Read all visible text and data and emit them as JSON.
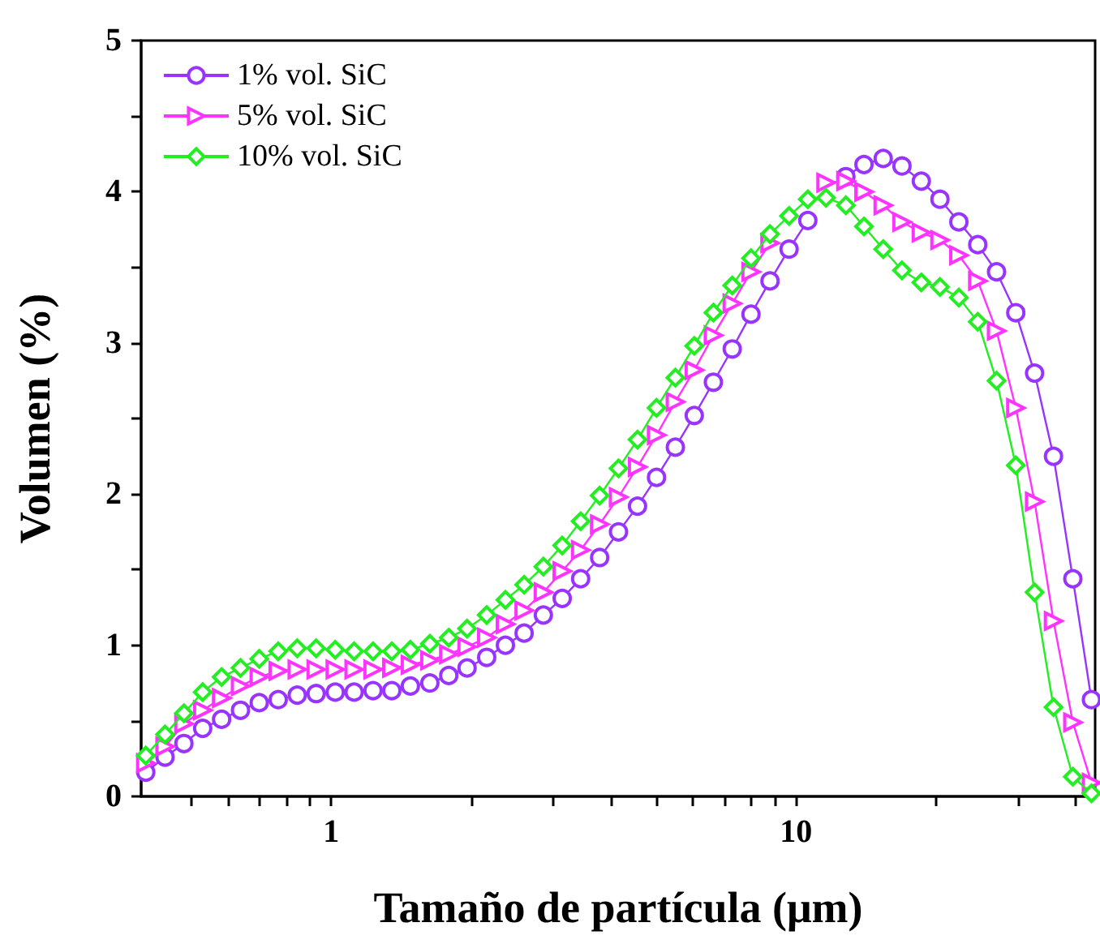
{
  "chart_data": {
    "type": "line",
    "xlabel": "Tamaño de partícula (μm)",
    "ylabel": "Volumen (%)",
    "x": [
      0.399,
      0.439,
      0.482,
      0.529,
      0.581,
      0.638,
      0.7,
      0.769,
      0.845,
      0.928,
      1.02,
      1.12,
      1.23,
      1.35,
      1.48,
      1.63,
      1.79,
      1.96,
      2.16,
      2.37,
      2.6,
      2.86,
      3.14,
      3.44,
      3.78,
      4.15,
      4.56,
      5.01,
      5.5,
      6.04,
      6.64,
      7.29,
      8.0,
      8.79,
      9.66,
      10.6,
      11.6,
      12.8,
      14.0,
      15.4,
      16.9,
      18.6,
      20.4,
      22.4,
      24.6,
      27.0,
      29.7,
      32.6,
      35.8,
      39.4,
      43.2
    ],
    "series": [
      {
        "name": "1% vol. SiC",
        "color": "#9933ff",
        "marker": "circle",
        "values": [
          0.16,
          0.26,
          0.35,
          0.45,
          0.51,
          0.57,
          0.62,
          0.64,
          0.67,
          0.68,
          0.69,
          0.69,
          0.7,
          0.7,
          0.73,
          0.75,
          0.8,
          0.85,
          0.92,
          1.0,
          1.08,
          1.2,
          1.31,
          1.44,
          1.58,
          1.75,
          1.92,
          2.11,
          2.31,
          2.52,
          2.74,
          2.96,
          3.19,
          3.41,
          3.62,
          3.81,
          null,
          4.1,
          4.18,
          4.22,
          4.17,
          4.07,
          3.95,
          3.8,
          3.65,
          3.47,
          3.2,
          2.8,
          2.25,
          1.44,
          0.64
        ]
      },
      {
        "name": "5% vol. SiC",
        "color": "#ff33ff",
        "marker": "triangle",
        "values": [
          0.22,
          0.33,
          0.48,
          0.57,
          0.65,
          0.73,
          0.79,
          0.83,
          0.84,
          0.84,
          0.84,
          0.84,
          0.84,
          0.85,
          0.87,
          0.9,
          0.94,
          0.99,
          1.05,
          1.14,
          1.23,
          1.35,
          1.49,
          1.63,
          1.8,
          1.98,
          2.18,
          2.39,
          2.61,
          2.82,
          3.05,
          3.26,
          3.47,
          3.66,
          null,
          null,
          4.06,
          4.07,
          4.0,
          3.91,
          3.8,
          3.73,
          3.68,
          3.58,
          3.41,
          3.08,
          2.57,
          1.95,
          1.16,
          0.49,
          0.09
        ]
      },
      {
        "name": "10% vol. SiC",
        "color": "#22ee22",
        "marker": "diamond",
        "values": [
          0.27,
          0.41,
          0.55,
          0.69,
          0.79,
          0.85,
          0.91,
          0.96,
          0.98,
          0.98,
          0.97,
          0.96,
          0.96,
          0.96,
          0.97,
          1.01,
          1.05,
          1.11,
          1.2,
          1.3,
          1.4,
          1.52,
          1.66,
          1.82,
          1.99,
          2.17,
          2.36,
          2.57,
          2.77,
          2.98,
          3.2,
          3.38,
          3.56,
          3.72,
          3.84,
          3.95,
          3.96,
          3.91,
          3.77,
          3.62,
          3.48,
          3.4,
          3.37,
          3.3,
          3.14,
          2.75,
          2.19,
          1.35,
          0.59,
          0.13,
          0.02
        ]
      }
    ],
    "log": "x",
    "xlim": [
      0.39,
      44
    ],
    "xticks": [
      {
        "value": 0.5,
        "label": null
      },
      {
        "value": 0.6,
        "label": null
      },
      {
        "value": 0.7,
        "label": null
      },
      {
        "value": 0.8,
        "label": null
      },
      {
        "value": 0.9,
        "label": null
      },
      1,
      {
        "value": 2,
        "label": null
      },
      {
        "value": 3,
        "label": null
      },
      {
        "value": 4,
        "label": null
      },
      {
        "value": 5,
        "label": null
      },
      {
        "value": 6,
        "label": null
      },
      {
        "value": 7,
        "label": null
      },
      {
        "value": 8,
        "label": null
      },
      {
        "value": 9,
        "label": null
      },
      10,
      {
        "value": 20,
        "label": null
      },
      {
        "value": 30,
        "label": null
      },
      {
        "value": 40,
        "label": null
      }
    ],
    "ylim": [
      0,
      5
    ],
    "yticks": [
      0,
      {
        "value": 0.5,
        "label": null
      },
      1,
      {
        "value": 1.5,
        "label": null
      },
      2,
      {
        "value": 2.5,
        "label": null
      },
      3,
      {
        "value": 3.5,
        "label": null
      },
      4,
      {
        "value": 4.5,
        "label": null
      },
      5
    ],
    "grid": false,
    "legend": "top left",
    "line_style": "solid"
  }
}
